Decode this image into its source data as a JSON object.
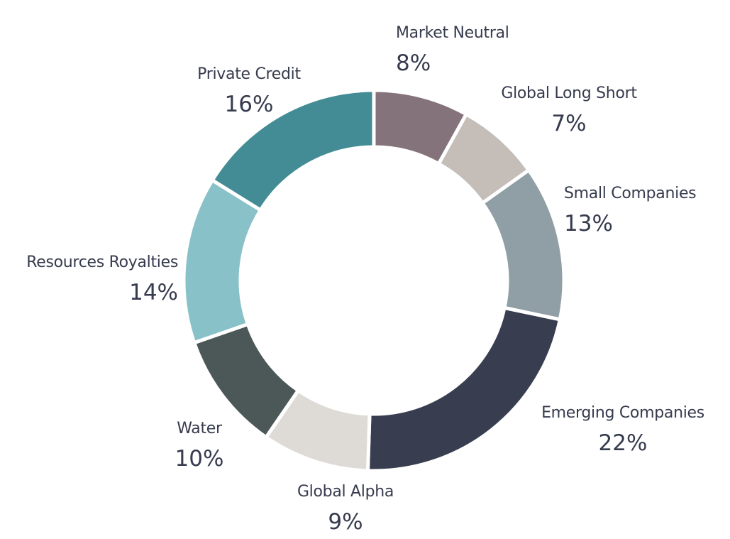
{
  "chart_data": {
    "type": "pie",
    "subtype": "donut",
    "title": "",
    "start_angle": "top, clockwise",
    "slices": [
      {
        "label": "Market Neutral",
        "value": 8,
        "value_label": "8%",
        "color": "#85737b"
      },
      {
        "label": "Global Long Short",
        "value": 7,
        "value_label": "7%",
        "color": "#c4bdb8"
      },
      {
        "label": "Small Companies",
        "value": 13,
        "value_label": "13%",
        "color": "#909ea5"
      },
      {
        "label": "Emerging Companies",
        "value": 22,
        "value_label": "22%",
        "color": "#383e50"
      },
      {
        "label": "Global Alpha",
        "value": 9,
        "value_label": "9%",
        "color": "#dedbd7"
      },
      {
        "label": "Water",
        "value": 10,
        "value_label": "10%",
        "color": "#4c5858"
      },
      {
        "label": "Resources Royalties",
        "value": 14,
        "value_label": "14%",
        "color": "#88c1c8"
      },
      {
        "label": "Private Credit",
        "value": 16,
        "value_label": "16%",
        "color": "#438c95"
      }
    ]
  }
}
